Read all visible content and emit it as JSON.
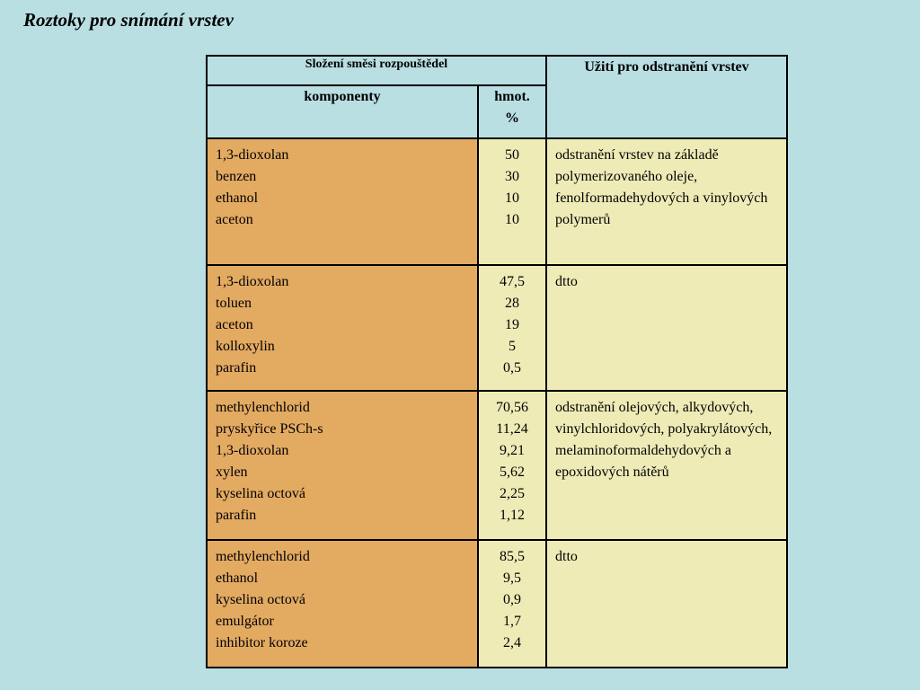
{
  "title": "Roztoky pro snímání vrstev",
  "table": {
    "header_mix": "Složení směsi rozpouštědel",
    "header_use": "Užití pro odstranění vrstev",
    "header_components": "komponenty",
    "header_mass_line1": "hmot.",
    "header_mass_line2": "%",
    "rows": [
      {
        "components": [
          "1,3-dioxolan",
          "benzen",
          "ethanol",
          "aceton"
        ],
        "mass": [
          "50",
          "30",
          "10",
          "10"
        ],
        "use": "odstranění vrstev na základě polymerizovaného oleje, fenolformadehydových a vinylových polymerů"
      },
      {
        "components": [
          "1,3-dioxolan",
          "toluen",
          "aceton",
          "kolloxylin",
          "parafin"
        ],
        "mass": [
          "47,5",
          "28",
          "19",
          "5",
          "0,5"
        ],
        "use": "dtto"
      },
      {
        "components": [
          "methylenchlorid",
          "pryskyřice PSCh-s",
          "1,3-dioxolan",
          "xylen",
          "kyselina octová",
          "parafin"
        ],
        "mass": [
          "70,56",
          "11,24",
          "9,21",
          "5,62",
          "2,25",
          "1,12"
        ],
        "use": "odstranění olejových, alkydových, vinylchloridových, polyakrylátových, melaminoformaldehydových a epoxidových nátěrů"
      },
      {
        "components": [
          "methylenchlorid",
          "ethanol",
          "kyselina octová",
          "emulgátor",
          "inhibitor koroze"
        ],
        "mass": [
          "85,5",
          "9,5",
          "0,9",
          "1,7",
          "2,4"
        ],
        "use": "dtto"
      }
    ]
  }
}
